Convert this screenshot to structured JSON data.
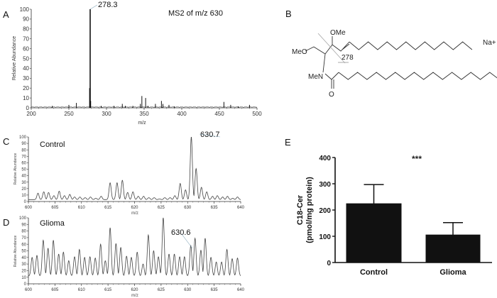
{
  "panels": {
    "a": "A",
    "b": "B",
    "c": "C",
    "d": "D",
    "e": "E"
  },
  "structure": {
    "meo": "MeO",
    "ome": "OMe",
    "men": "MeN",
    "oxygen": "O",
    "fragment": "278",
    "ion": "Na+"
  },
  "chart_data": [
    {
      "id": "A",
      "type": "bar",
      "subtype": "mass-spectrum-sticks",
      "title": "MS2 of m/z 630",
      "xlabel": "m/z",
      "ylabel": "Relative Abundance",
      "xlim": [
        200,
        500
      ],
      "ylim": [
        0,
        100
      ],
      "xticks": [
        200,
        250,
        300,
        350,
        400,
        450,
        500
      ],
      "yticks": [
        0,
        10,
        20,
        30,
        40,
        50,
        60,
        70,
        80,
        90,
        100
      ],
      "annotation": "278.3",
      "peaks": [
        [
          228,
          2
        ],
        [
          250,
          3
        ],
        [
          260,
          5
        ],
        [
          277.5,
          20
        ],
        [
          278.3,
          100
        ],
        [
          279,
          7
        ],
        [
          293,
          2
        ],
        [
          310,
          2
        ],
        [
          321,
          4
        ],
        [
          325,
          2
        ],
        [
          335,
          2
        ],
        [
          345,
          4
        ],
        [
          347,
          12
        ],
        [
          352,
          10
        ],
        [
          355,
          2
        ],
        [
          365,
          4
        ],
        [
          373,
          7
        ],
        [
          375,
          4
        ],
        [
          383,
          3
        ],
        [
          390,
          1.5
        ],
        [
          456,
          6
        ],
        [
          465,
          3
        ],
        [
          475,
          1.5
        ],
        [
          490,
          3
        ]
      ]
    },
    {
      "id": "C",
      "type": "line",
      "subtype": "mass-spectrum-profile",
      "title": "Control",
      "xlabel": "m/z",
      "ylabel": "Relative Abundance",
      "xlim": [
        600,
        640
      ],
      "ylim": [
        0,
        100
      ],
      "xticks": [
        600,
        605,
        610,
        615,
        620,
        625,
        630,
        635,
        640
      ],
      "yticks": [
        0,
        10,
        20,
        30,
        40,
        50,
        60,
        70,
        80,
        90,
        100
      ],
      "annotation": "630.7",
      "baseline": 3,
      "peaks": [
        [
          601.8,
          13
        ],
        [
          602.9,
          15
        ],
        [
          603.8,
          14
        ],
        [
          604.8,
          9
        ],
        [
          605.8,
          16
        ],
        [
          606.8,
          9
        ],
        [
          607.8,
          11
        ],
        [
          608.7,
          7
        ],
        [
          609.7,
          7
        ],
        [
          610.7,
          6
        ],
        [
          611.7,
          7
        ],
        [
          612.7,
          5
        ],
        [
          613.7,
          8
        ],
        [
          615.4,
          29
        ],
        [
          616.7,
          29
        ],
        [
          617.7,
          33
        ],
        [
          618.7,
          14
        ],
        [
          619.7,
          15
        ],
        [
          620.7,
          8
        ],
        [
          621.7,
          8
        ],
        [
          622.7,
          6
        ],
        [
          623.7,
          6
        ],
        [
          624.7,
          4
        ],
        [
          625.7,
          6
        ],
        [
          626.7,
          6
        ],
        [
          627.6,
          9
        ],
        [
          628.6,
          28
        ],
        [
          629.6,
          18
        ],
        [
          630.7,
          100
        ],
        [
          631.6,
          51
        ],
        [
          632.6,
          22
        ],
        [
          633.6,
          15
        ],
        [
          634.7,
          8
        ],
        [
          635.6,
          9
        ],
        [
          636.6,
          7
        ],
        [
          637.5,
          8
        ],
        [
          638.5,
          5
        ],
        [
          639.4,
          7
        ]
      ]
    },
    {
      "id": "D",
      "type": "line",
      "subtype": "mass-spectrum-profile",
      "title": "Glioma",
      "xlabel": "m/z",
      "ylabel": "Relative Abundance",
      "xlim": [
        600,
        640
      ],
      "ylim": [
        0,
        100
      ],
      "xticks": [
        600,
        605,
        610,
        615,
        620,
        625,
        630,
        635,
        640
      ],
      "yticks": [
        0,
        10,
        20,
        30,
        40,
        50,
        60,
        70,
        80,
        90,
        100
      ],
      "annotation": "630.6",
      "baseline": 12,
      "peaks": [
        [
          600.7,
          40
        ],
        [
          601.6,
          43
        ],
        [
          602.8,
          66
        ],
        [
          603.7,
          54
        ],
        [
          604.7,
          66
        ],
        [
          605.7,
          45
        ],
        [
          606.6,
          48
        ],
        [
          607.6,
          35
        ],
        [
          608.7,
          41
        ],
        [
          609.6,
          52
        ],
        [
          610.6,
          40
        ],
        [
          611.6,
          41
        ],
        [
          612.6,
          39
        ],
        [
          613.6,
          60
        ],
        [
          614.5,
          35
        ],
        [
          615.4,
          85
        ],
        [
          616.5,
          61
        ],
        [
          617.4,
          55
        ],
        [
          618.5,
          42
        ],
        [
          619.4,
          40
        ],
        [
          620.5,
          48
        ],
        [
          621.6,
          30
        ],
        [
          622.6,
          74
        ],
        [
          623.6,
          50
        ],
        [
          624.5,
          41
        ],
        [
          625.4,
          100
        ],
        [
          626.5,
          45
        ],
        [
          627.5,
          45
        ],
        [
          628.5,
          41
        ],
        [
          629.4,
          41
        ],
        [
          630.6,
          58
        ],
        [
          631.4,
          69
        ],
        [
          632.5,
          51
        ],
        [
          633.3,
          69
        ],
        [
          634.4,
          40
        ],
        [
          635.4,
          33
        ],
        [
          636.4,
          33
        ],
        [
          637.4,
          52
        ],
        [
          638.4,
          38
        ],
        [
          639.4,
          39
        ]
      ]
    },
    {
      "id": "E",
      "type": "bar",
      "categories": [
        "Control",
        "Glioma"
      ],
      "values": [
        224,
        105
      ],
      "error_upper": [
        297,
        152
      ],
      "ylabel_line1": "C18-Cer",
      "ylabel_line2": "(pmol/mg protein)",
      "ylim": [
        0,
        400
      ],
      "yticks": [
        0,
        100,
        200,
        300,
        400
      ],
      "significance": "***",
      "bar_color": "#111111"
    }
  ]
}
